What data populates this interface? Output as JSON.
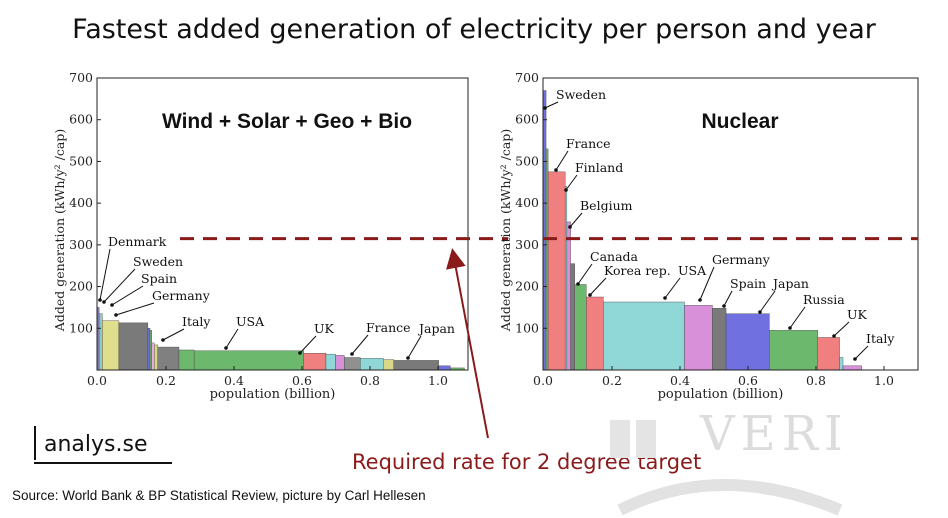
{
  "title": "Fastest added generation of electricity per person and year",
  "target_caption": "Required rate for 2 degree target",
  "source": "Source: World Bank & BP Statistical Review, picture by Carl Hellesen",
  "logo_text": "analys.se",
  "watermark_text": "VERI",
  "colors": {
    "target_line": "#8b1a1a",
    "title": "#111111"
  },
  "chart_data": [
    {
      "type": "bar",
      "title": "Wind + Solar + Geo + Bio",
      "xlabel": "population (billion)",
      "ylabel": "Added generation (kWh/y² /cap)",
      "xlim": [
        0,
        1.05
      ],
      "ylim": [
        0,
        700
      ],
      "x_ticks": [
        "0.0",
        "0.2",
        "0.4",
        "0.6",
        "0.8",
        "1.0"
      ],
      "y_ticks": [
        "100",
        "200",
        "300",
        "400",
        "500",
        "600",
        "700"
      ],
      "target_line": 315,
      "bars": [
        {
          "country": "Denmark",
          "x0": 0.0,
          "x1": 0.006,
          "value": 150,
          "color": "#8080c0"
        },
        {
          "country": "Sweden",
          "x0": 0.006,
          "x1": 0.015,
          "value": 135,
          "color": "#90c8c8"
        },
        {
          "country": "Spain",
          "x0": 0.015,
          "x1": 0.062,
          "value": 118,
          "color": "#dede8c"
        },
        {
          "country": "Germany",
          "x0": 0.062,
          "x1": 0.144,
          "value": 113,
          "color": "#7a7a7a"
        },
        {
          "country": "",
          "x0": 0.144,
          "x1": 0.15,
          "value": 100,
          "color": "#7070e0"
        },
        {
          "country": "",
          "x0": 0.15,
          "x1": 0.155,
          "value": 95,
          "color": "#6cb86c"
        },
        {
          "country": "",
          "x0": 0.155,
          "x1": 0.162,
          "value": 65,
          "color": "#e8a8e8"
        },
        {
          "country": "",
          "x0": 0.162,
          "x1": 0.172,
          "value": 60,
          "color": "#d8d888"
        },
        {
          "country": "Italy",
          "x0": 0.172,
          "x1": 0.232,
          "value": 55,
          "color": "#808080"
        },
        {
          "country": "",
          "x0": 0.232,
          "x1": 0.275,
          "value": 48,
          "color": "#6cb86c"
        },
        {
          "country": "USA",
          "x0": 0.275,
          "x1": 0.585,
          "value": 46,
          "color": "#6cb86c"
        },
        {
          "country": "UK",
          "x0": 0.585,
          "x1": 0.648,
          "value": 40,
          "color": "#f08080"
        },
        {
          "country": "",
          "x0": 0.648,
          "x1": 0.675,
          "value": 38,
          "color": "#90d8d8"
        },
        {
          "country": "",
          "x0": 0.675,
          "x1": 0.7,
          "value": 35,
          "color": "#d890d8"
        },
        {
          "country": "",
          "x0": 0.7,
          "x1": 0.745,
          "value": 30,
          "color": "#909090"
        },
        {
          "country": "France",
          "x0": 0.745,
          "x1": 0.81,
          "value": 28,
          "color": "#90d8d8"
        },
        {
          "country": "",
          "x0": 0.81,
          "x1": 0.84,
          "value": 25,
          "color": "#d8d888"
        },
        {
          "country": "Japan",
          "x0": 0.84,
          "x1": 0.967,
          "value": 23,
          "color": "#7a7a7a"
        },
        {
          "country": "",
          "x0": 0.967,
          "x1": 1.0,
          "value": 10,
          "color": "#7070e0"
        },
        {
          "country": "",
          "x0": 1.0,
          "x1": 1.04,
          "value": 5,
          "color": "#6cb86c"
        }
      ]
    },
    {
      "type": "bar",
      "title": "Nuclear",
      "xlabel": "population (billion)",
      "ylabel": "Added generation (kWh/y² /cap)",
      "xlim": [
        0,
        1.1
      ],
      "ylim": [
        0,
        700
      ],
      "x_ticks": [
        "0.0",
        "0.2",
        "0.4",
        "0.6",
        "0.8",
        "1.0"
      ],
      "y_ticks": [
        "100",
        "200",
        "300",
        "400",
        "500",
        "600",
        "700"
      ],
      "target_line": 315,
      "bars": [
        {
          "country": "Sweden",
          "x0": 0.0,
          "x1": 0.009,
          "value": 670,
          "color": "#7070e0"
        },
        {
          "country": "",
          "x0": 0.009,
          "x1": 0.015,
          "value": 530,
          "color": "#6cb86c"
        },
        {
          "country": "France",
          "x0": 0.015,
          "x1": 0.065,
          "value": 475,
          "color": "#f08080"
        },
        {
          "country": "Finland",
          "x0": 0.065,
          "x1": 0.07,
          "value": 440,
          "color": "#90d8d8"
        },
        {
          "country": "Belgium",
          "x0": 0.07,
          "x1": 0.081,
          "value": 355,
          "color": "#d890d8"
        },
        {
          "country": "",
          "x0": 0.081,
          "x1": 0.093,
          "value": 255,
          "color": "#7a7a7a"
        },
        {
          "country": "Canada",
          "x0": 0.093,
          "x1": 0.127,
          "value": 205,
          "color": "#6cb86c"
        },
        {
          "country": "Korea rep.",
          "x0": 0.127,
          "x1": 0.177,
          "value": 175,
          "color": "#f08080"
        },
        {
          "country": "USA",
          "x0": 0.177,
          "x1": 0.415,
          "value": 163,
          "color": "#90d8d8"
        },
        {
          "country": "",
          "x0": 0.415,
          "x1": 0.497,
          "value": 155,
          "color": "#d890d8"
        },
        {
          "country": "Germany",
          "x0": 0.497,
          "x1": 0.537,
          "value": 148,
          "color": "#7a7a7a"
        },
        {
          "country": "Spain",
          "x0": 0.537,
          "x1": 0.664,
          "value": 135,
          "color": "#7070e0"
        },
        {
          "country": "Japan",
          "x0": 0.664,
          "x1": 0.806,
          "value": 95,
          "color": "#6cb86c"
        },
        {
          "country": "Russia",
          "x0": 0.806,
          "x1": 0.87,
          "value": 78,
          "color": "#f08080"
        },
        {
          "country": "UK",
          "x0": 0.87,
          "x1": 0.88,
          "value": 30,
          "color": "#90d8d8"
        },
        {
          "country": "Italy",
          "x0": 0.88,
          "x1": 0.935,
          "value": 10,
          "color": "#d890d8"
        }
      ]
    }
  ]
}
